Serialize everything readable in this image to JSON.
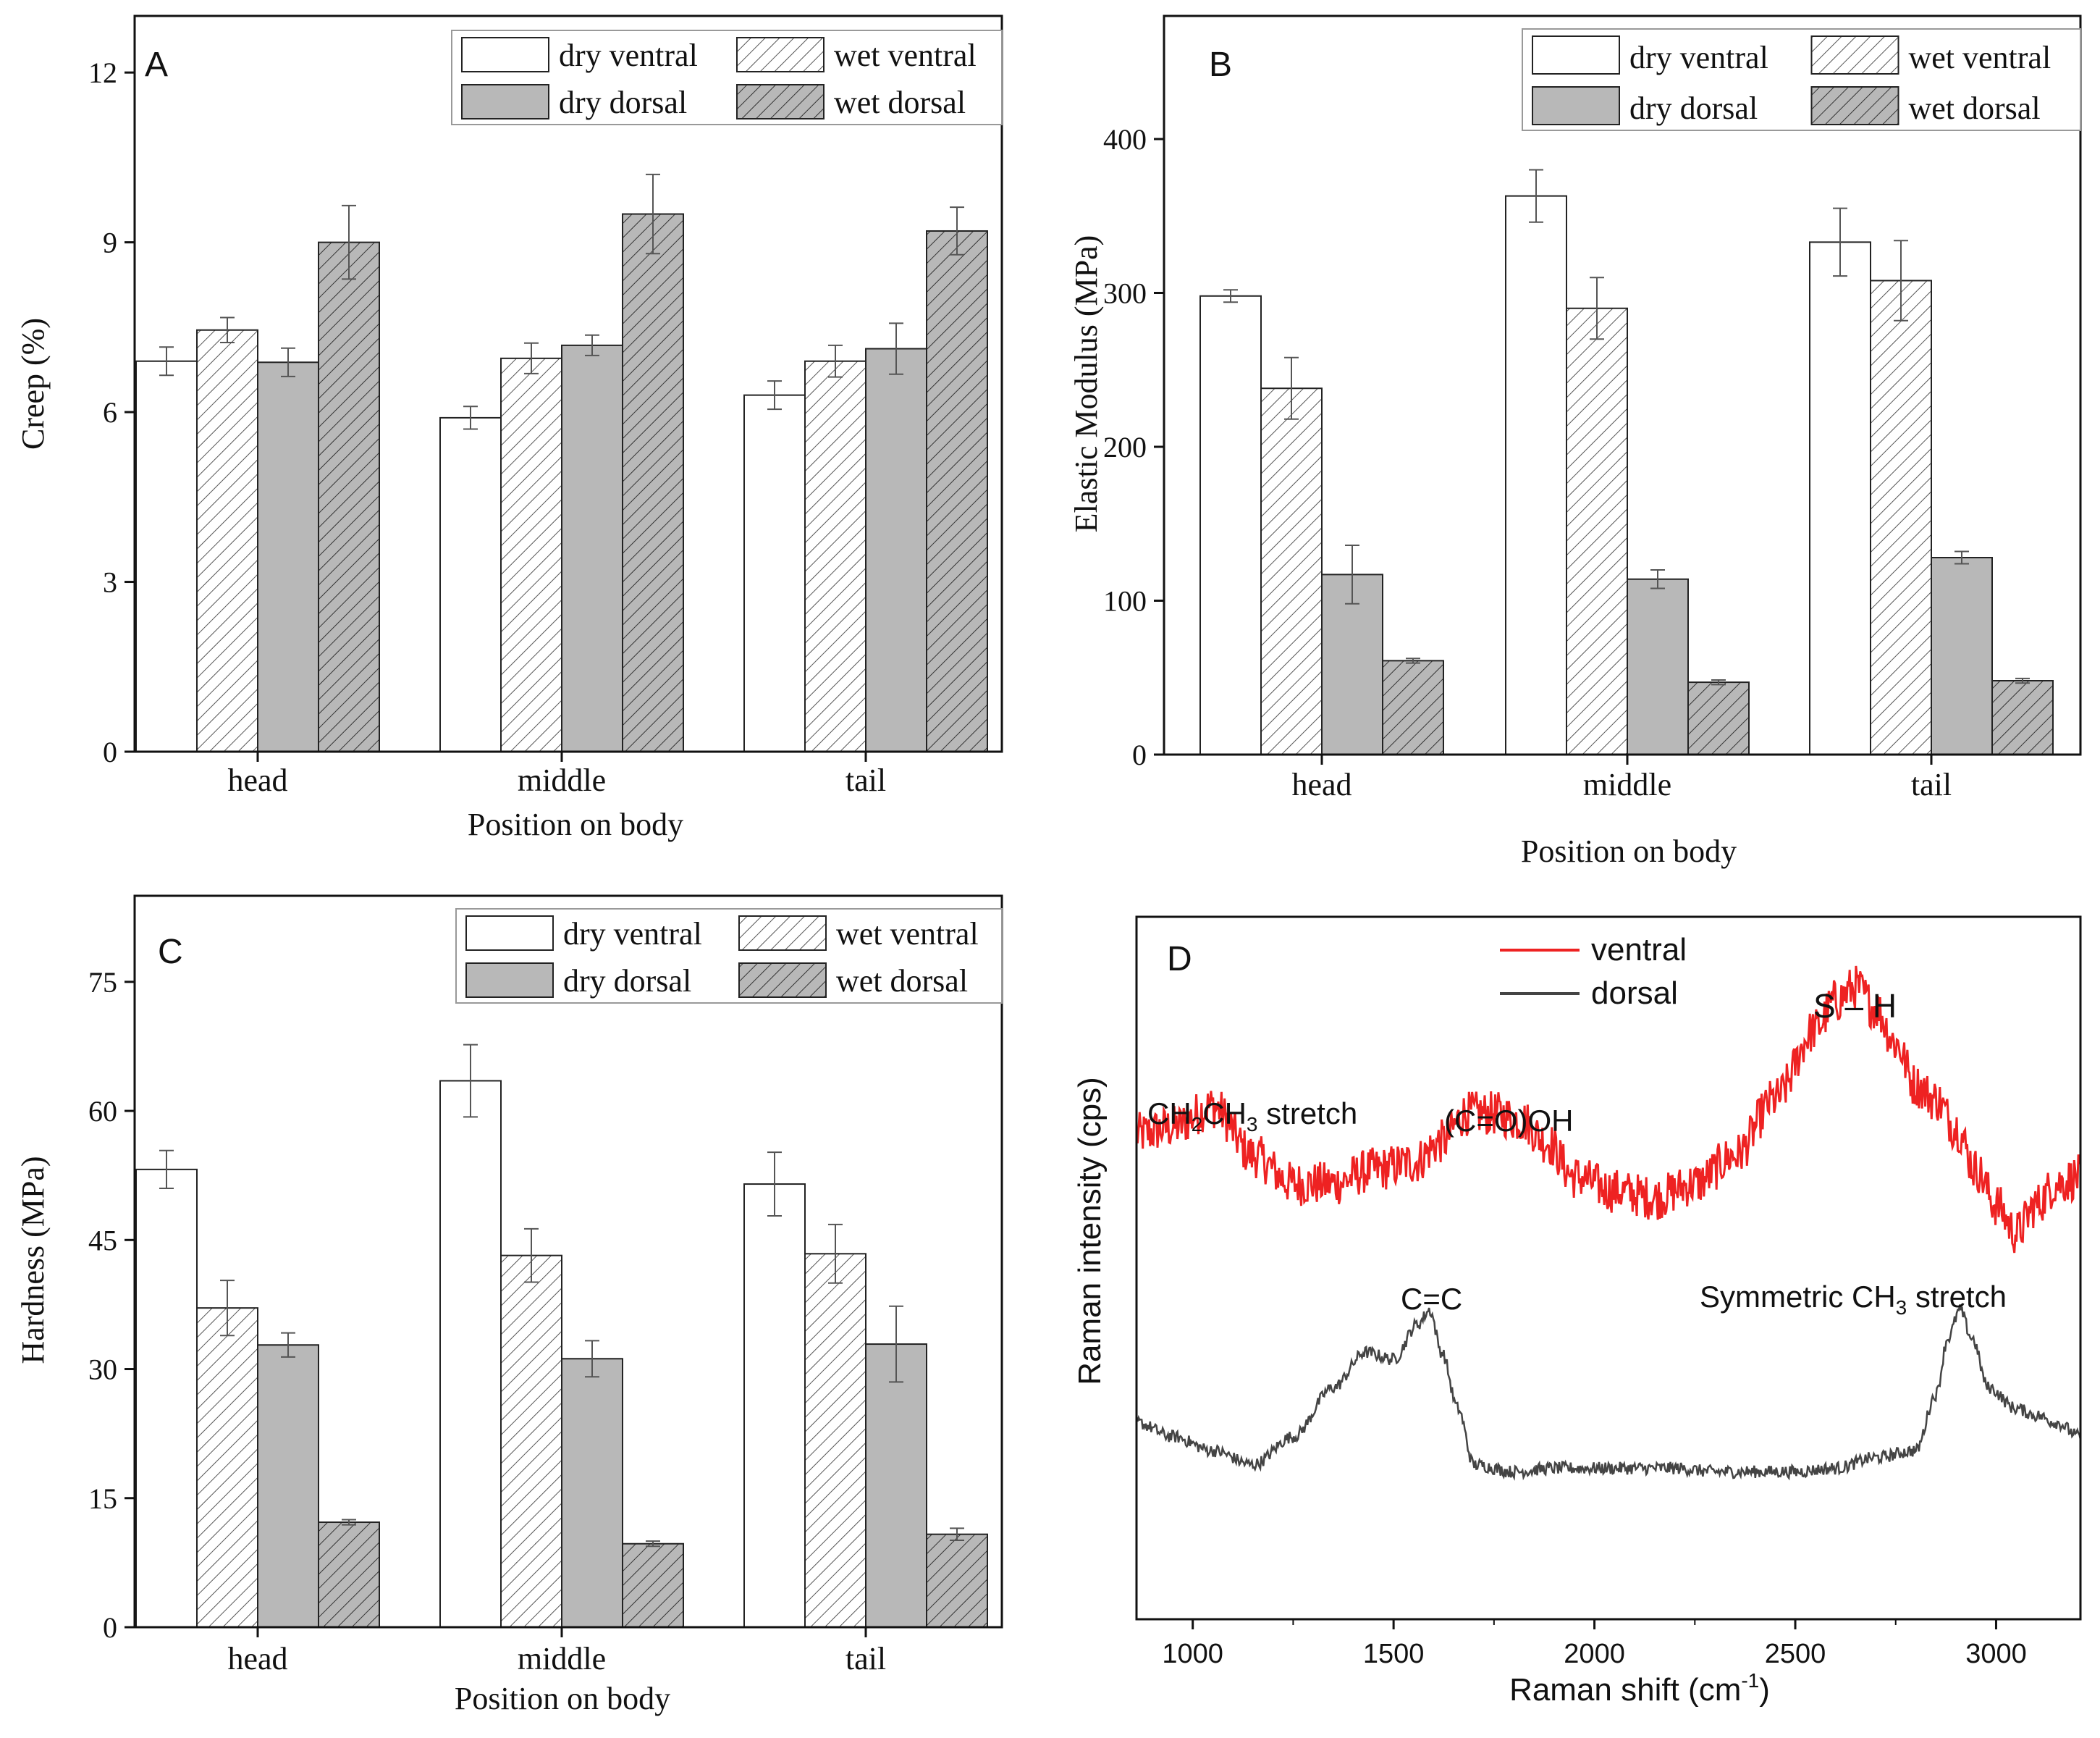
{
  "chart_data": [
    {
      "panel_label": "A",
      "type": "bar",
      "ylabel": "Creep (%)",
      "xlabel": "Position on body",
      "categories": [
        "head",
        "middle",
        "tail"
      ],
      "ylim": [
        0,
        13
      ],
      "yticks": [
        0,
        3,
        6,
        9,
        12
      ],
      "legend_position": "top-right",
      "series": [
        {
          "name": "dry ventral",
          "style": "white",
          "values": [
            6.9,
            5.9,
            6.3
          ],
          "errors": [
            0.25,
            0.2,
            0.25
          ]
        },
        {
          "name": "wet ventral",
          "style": "white-hatch",
          "values": [
            7.45,
            6.95,
            6.9
          ],
          "errors": [
            0.22,
            0.27,
            0.28
          ]
        },
        {
          "name": "dry dorsal",
          "style": "gray",
          "values": [
            6.88,
            7.18,
            7.12
          ],
          "errors": [
            0.25,
            0.18,
            0.45
          ]
        },
        {
          "name": "wet dorsal",
          "style": "gray-hatch",
          "values": [
            9.0,
            9.5,
            9.2
          ],
          "errors": [
            0.65,
            0.7,
            0.42
          ]
        }
      ]
    },
    {
      "panel_label": "B",
      "type": "bar",
      "ylabel": "Elastic Modulus (MPa)",
      "xlabel": "Position on body",
      "categories": [
        "head",
        "middle",
        "tail"
      ],
      "ylim": [
        0,
        480
      ],
      "yticks": [
        0,
        100,
        200,
        300,
        400
      ],
      "legend_position": "top-right",
      "series": [
        {
          "name": "dry ventral",
          "style": "white",
          "values": [
            298,
            363,
            333
          ],
          "errors": [
            4,
            17,
            22
          ]
        },
        {
          "name": "wet ventral",
          "style": "white-hatch",
          "values": [
            238,
            290,
            308
          ],
          "errors": [
            20,
            20,
            26
          ]
        },
        {
          "name": "dry dorsal",
          "style": "gray",
          "values": [
            117,
            114,
            128
          ],
          "errors": [
            19,
            6,
            4
          ]
        },
        {
          "name": "wet dorsal",
          "style": "gray-hatch",
          "values": [
            61,
            47,
            48
          ],
          "errors": [
            1.5,
            1.5,
            1.5
          ]
        }
      ]
    },
    {
      "panel_label": "C",
      "type": "bar",
      "ylabel": "Hardness (MPa)",
      "xlabel": "Position on body",
      "categories": [
        "head",
        "middle",
        "tail"
      ],
      "ylim": [
        0,
        85
      ],
      "yticks": [
        0,
        15,
        30,
        45,
        60,
        75
      ],
      "legend_position": "top-right",
      "series": [
        {
          "name": "dry ventral",
          "style": "white",
          "values": [
            53.2,
            63.5,
            51.5
          ],
          "errors": [
            2.2,
            4.2,
            3.7
          ]
        },
        {
          "name": "wet ventral",
          "style": "white-hatch",
          "values": [
            37.1,
            43.2,
            43.4
          ],
          "errors": [
            3.2,
            3.1,
            3.4
          ]
        },
        {
          "name": "dry dorsal",
          "style": "gray",
          "values": [
            32.8,
            31.2,
            32.9
          ],
          "errors": [
            1.4,
            2.1,
            4.4
          ]
        },
        {
          "name": "wet dorsal",
          "style": "gray-hatch",
          "values": [
            12.2,
            9.7,
            10.8
          ],
          "errors": [
            0.3,
            0.3,
            0.7
          ]
        }
      ]
    },
    {
      "panel_label": "D",
      "type": "line",
      "ylabel": "Raman intensity (cps)",
      "xlabel": "Raman shift (cm",
      "xlabel_sup": "-1",
      "xlabel_end": ")",
      "xlim": [
        860,
        3210
      ],
      "xticks": [
        1000,
        1500,
        2000,
        2500,
        3000
      ],
      "ylim": [
        0,
        100
      ],
      "legend_position": "top-center",
      "series": [
        {
          "name": "ventral",
          "color": "#ee2222",
          "x": [
            860,
            950,
            1050,
            1150,
            1250,
            1350,
            1450,
            1550,
            1620,
            1680,
            1750,
            1820,
            1880,
            1950,
            2050,
            2150,
            2250,
            2350,
            2450,
            2550,
            2600,
            2650,
            2700,
            2750,
            2800,
            2850,
            2900,
            2950,
            3000,
            3050,
            3100,
            3150,
            3210
          ],
          "y": [
            69,
            70,
            73,
            66,
            62,
            62,
            64,
            65,
            68,
            72,
            72,
            71,
            68,
            63,
            61,
            60,
            62,
            66,
            74,
            84,
            88,
            90,
            87,
            82,
            76,
            74,
            70,
            64,
            59,
            55,
            59,
            62,
            63
          ]
        },
        {
          "name": "dorsal",
          "color": "#444444",
          "x": [
            860,
            950,
            1050,
            1150,
            1250,
            1350,
            1430,
            1500,
            1560,
            1590,
            1620,
            1660,
            1700,
            1800,
            1900,
            2000,
            2100,
            2200,
            2300,
            2400,
            2500,
            2600,
            2700,
            2800,
            2850,
            2880,
            2910,
            2940,
            2980,
            3050,
            3100,
            3150,
            3210
          ],
          "y": [
            28,
            26,
            24,
            22,
            26,
            33,
            38,
            37,
            42,
            44,
            38,
            30,
            22,
            21,
            21.5,
            21.5,
            21.5,
            21.5,
            21,
            21,
            21,
            21.5,
            23,
            24,
            32,
            40,
            44,
            40,
            33,
            30,
            29,
            28,
            26
          ]
        }
      ],
      "annotations": [
        {
          "text": "CH",
          "sub1": "2",
          "mid": "CH",
          "sub2": "3",
          "tail": " stretch",
          "near_x": 1050
        },
        {
          "text": "(C=O)OH",
          "near_x": 1720
        },
        {
          "text": "S – H",
          "near_x": 2650
        },
        {
          "text": "C=C",
          "near_x": 1590
        },
        {
          "text": "Symmetric CH",
          "sub": "3",
          "tail": " stretch",
          "near_x": 2920
        }
      ]
    }
  ]
}
